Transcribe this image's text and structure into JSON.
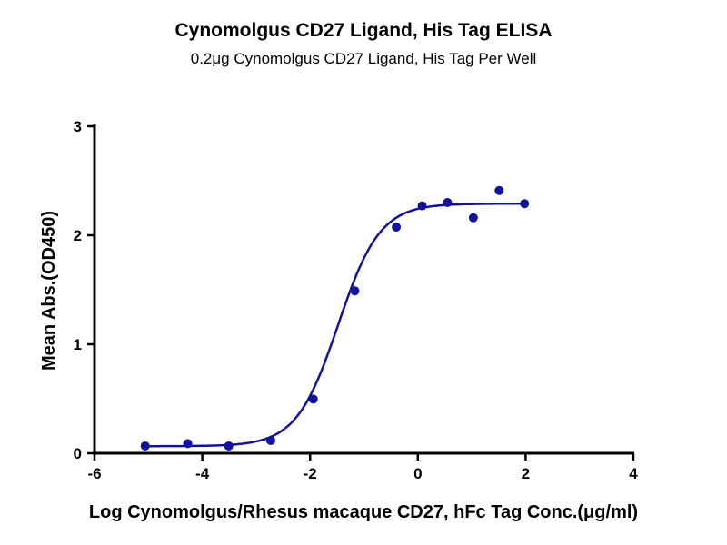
{
  "chart_data": {
    "type": "scatter",
    "title": "Cynomolgus CD27 Ligand, His Tag ELISA",
    "subtitle": "0.2μg Cynomolgus CD27 Ligand, His Tag Per Well",
    "xlabel": "Log Cynomolgus/Rhesus macaque CD27, hFc Tag Conc.(μg/ml)",
    "ylabel": "Mean Abs.(OD450)",
    "xlim": [
      -6,
      4
    ],
    "ylim": [
      0,
      3
    ],
    "xticks": [
      -6,
      -4,
      -2,
      0,
      2,
      4
    ],
    "yticks": [
      0,
      1,
      2,
      3
    ],
    "grid": false,
    "series": [
      {
        "name": "data",
        "x": [
          -5.06,
          -4.27,
          -3.51,
          -2.73,
          -1.94,
          -1.17,
          -0.4,
          0.08,
          0.55,
          1.03,
          1.51,
          1.98
        ],
        "y": [
          0.067,
          0.089,
          0.067,
          0.117,
          0.497,
          1.49,
          2.075,
          2.27,
          2.3,
          2.16,
          2.41,
          2.29
        ]
      }
    ],
    "fit": {
      "model": "4PL",
      "bottom": 0.065,
      "top": 2.29,
      "logEC50": -1.48,
      "hill": 1.12,
      "xrange": [
        -5.06,
        1.98
      ]
    },
    "color": "#12139c"
  }
}
